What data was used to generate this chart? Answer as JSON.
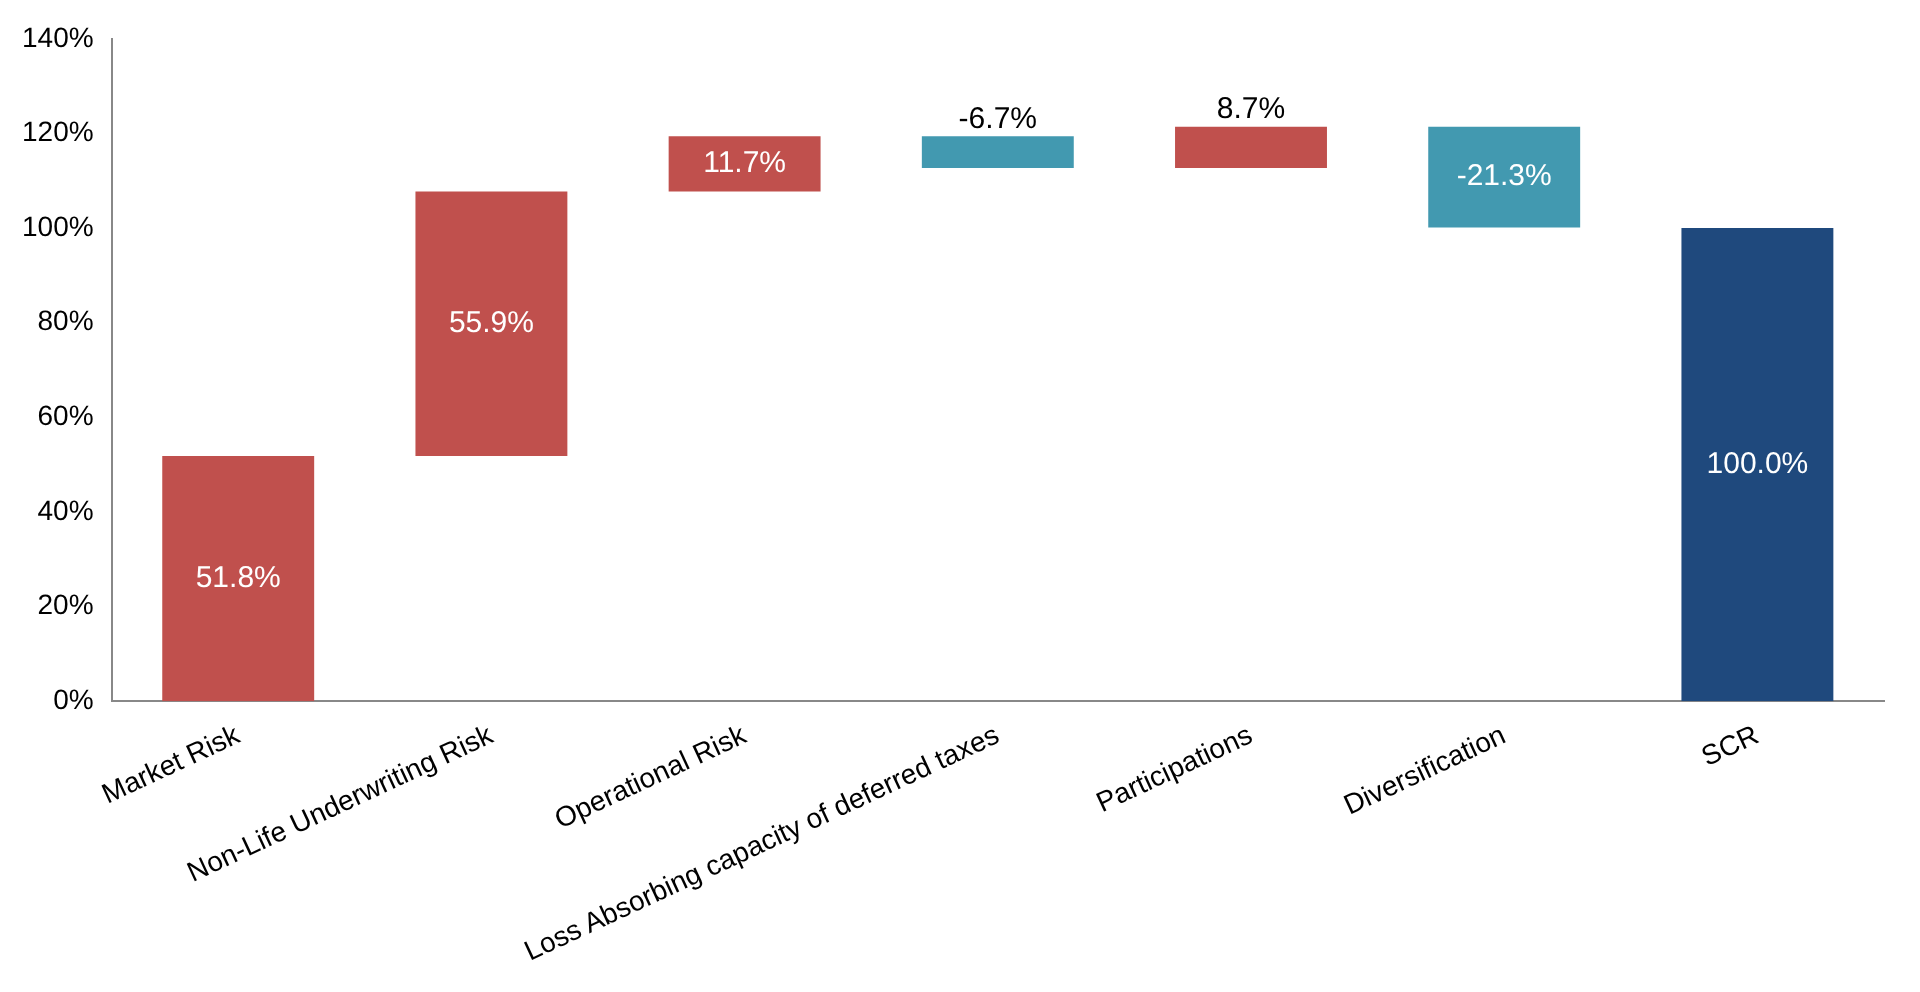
{
  "chart_data": {
    "type": "bar",
    "categories": [
      "Market Risk",
      "Non-Life Underwriting Risk",
      "Operational Risk",
      "Loss Absorbing capacity of deferred taxes",
      "Participations",
      "Diversification",
      "SCR"
    ],
    "values": [
      51.8,
      55.9,
      11.7,
      -6.7,
      8.7,
      -21.3,
      100.0
    ],
    "base": [
      0,
      51.8,
      107.7,
      119.4,
      112.7,
      121.4,
      0
    ],
    "colors": [
      "#c0504d",
      "#c0504d",
      "#c0504d",
      "#4299b0",
      "#c0504d",
      "#4299b0",
      "#1f497d"
    ],
    "value_labels": [
      "51.8%",
      "55.9%",
      "11.7%",
      "-6.7%",
      "8.7%",
      "-21.3%",
      "100.0%"
    ],
    "ylim": [
      0,
      140
    ],
    "yticks": [
      {
        "value": 0,
        "label": "0%"
      },
      {
        "value": 20,
        "label": "20%"
      },
      {
        "value": 40,
        "label": "40%"
      },
      {
        "value": 60,
        "label": "60%"
      },
      {
        "value": 80,
        "label": "80%"
      },
      {
        "value": 100,
        "label": "100%"
      },
      {
        "value": 120,
        "label": "120%"
      },
      {
        "value": 140,
        "label": "140%"
      }
    ],
    "grid": false,
    "legend": false
  }
}
